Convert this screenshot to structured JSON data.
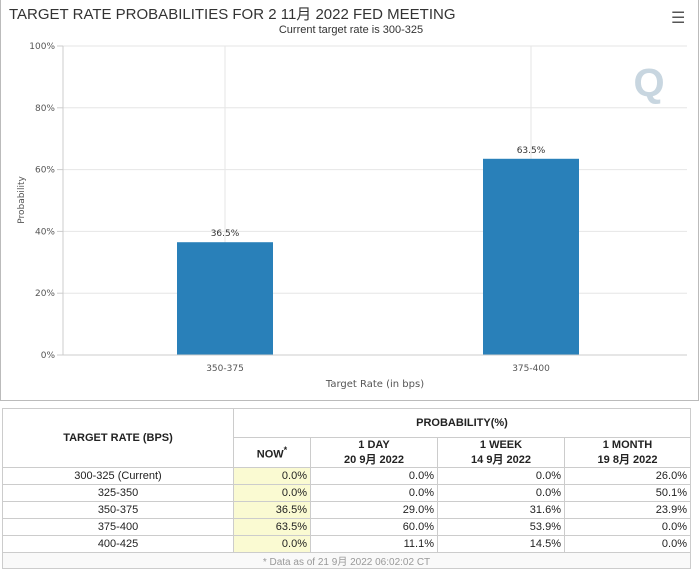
{
  "chart_data": {
    "type": "bar",
    "title": "TARGET RATE PROBABILITIES FOR 2 11月 2022 FED MEETING",
    "subtitle": "Current target rate is 300-325",
    "xlabel": "Target Rate (in bps)",
    "ylabel": "Probability",
    "categories": [
      "350-375",
      "375-400"
    ],
    "values": [
      36.5,
      63.5
    ],
    "data_labels": [
      "36.5%",
      "63.5%"
    ],
    "ylim": [
      0,
      100
    ],
    "yticks": [
      "0%",
      "20%",
      "40%",
      "60%",
      "80%",
      "100%"
    ],
    "grid": true,
    "bar_color": "#2980b9"
  },
  "menu_icon": "hamburger-menu-icon",
  "table": {
    "rate_header": "TARGET RATE (BPS)",
    "prob_header": "PROBABILITY(%)",
    "columns": [
      {
        "line1": "NOW",
        "line2": "",
        "mark": "*"
      },
      {
        "line1": "1 DAY",
        "line2": "20 9月 2022"
      },
      {
        "line1": "1 WEEK",
        "line2": "14 9月 2022"
      },
      {
        "line1": "1 MONTH",
        "line2": "19 8月 2022"
      }
    ],
    "rows": [
      [
        "300-325 (Current)",
        "0.0%",
        "0.0%",
        "0.0%",
        "26.0%"
      ],
      [
        "325-350",
        "0.0%",
        "0.0%",
        "0.0%",
        "50.1%"
      ],
      [
        "350-375",
        "36.5%",
        "29.0%",
        "31.6%",
        "23.9%"
      ],
      [
        "375-400",
        "63.5%",
        "60.0%",
        "53.9%",
        "0.0%"
      ],
      [
        "400-425",
        "0.0%",
        "11.1%",
        "14.5%",
        "0.0%"
      ]
    ],
    "footnote": "* Data as of 21 9月 2022 06:02:02 CT",
    "now_highlight": "#fafad2"
  }
}
